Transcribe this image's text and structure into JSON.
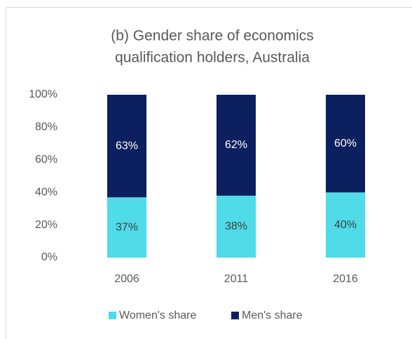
{
  "chart_data": {
    "type": "stacked_bar",
    "title": [
      "(b) Gender share of economics",
      "qualification holders, Australia"
    ],
    "categories": [
      "2006",
      "2011",
      "2016"
    ],
    "series": [
      {
        "name": "Women's share",
        "color": "#4fdbe8",
        "label_color": "#404040",
        "values": [
          37,
          38,
          40
        ],
        "value_labels": [
          "37%",
          "38%",
          "40%"
        ]
      },
      {
        "name": "Men's share",
        "color": "#0c1f5e",
        "label_color": "#ffffff",
        "values": [
          63,
          62,
          60
        ],
        "value_labels": [
          "63%",
          "62%",
          "60%"
        ]
      }
    ],
    "ylim": [
      0,
      100
    ],
    "yticks": [
      {
        "value": 0,
        "label": "0%"
      },
      {
        "value": 20,
        "label": "20%"
      },
      {
        "value": 40,
        "label": "40%"
      },
      {
        "value": 60,
        "label": "60%"
      },
      {
        "value": 80,
        "label": "80%"
      },
      {
        "value": 100,
        "label": "100%"
      }
    ],
    "grid": false,
    "legend": "bottom"
  }
}
